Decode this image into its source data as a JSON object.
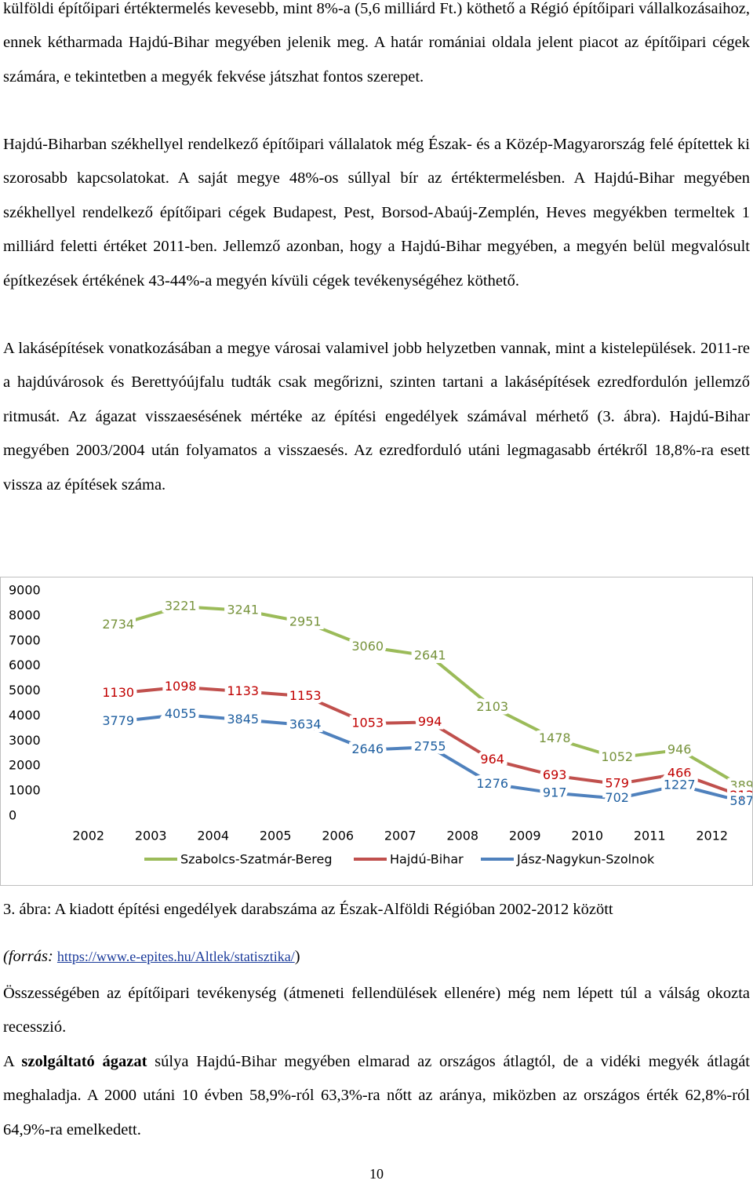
{
  "paragraphs": [
    "külföldi építőipari értéktermelés kevesebb, mint 8%-a (5,6 milliárd Ft.) köthető a Régió építőipari vállalkozásaihoz, ennek kétharmada Hajdú-Bihar megyében jelenik meg. A határ romániai oldala jelent piacot az építőipari cégek számára, e tekintetben a megyék fekvése játszhat fontos szerepet.",
    "Hajdú-Biharban székhellyel rendelkező építőipari vállalatok még Észak- és a Közép-Magyarország felé építettek ki szorosabb kapcsolatokat. A saját megye 48%-os súllyal bír az értéktermelésben. A Hajdú-Bihar megyében székhellyel rendelkező építőipari cégek Budapest, Pest, Borsod-Abaúj-Zemplén, Heves megyékben termeltek 1 milliárd feletti értéket 2011-ben. Jellemző azonban, hogy a Hajdú-Bihar megyében, a megyén belül megvalósult építkezések értékének 43-44%-a megyén kívüli cégek tevékenységéhez köthető.",
    "A lakásépítések vonatkozásában a megye városai valamivel jobb helyzetben vannak, mint a kistelepülések. 2011-re a hajdúvárosok és Berettyóújfalu tudták csak megőrizni, szinten tartani a lakásépítések ezredfordulón jellemző ritmusát. Az ágazat visszaesésének mértéke az építési engedélyek számával mérhető (3. ábra). Hajdú-Bihar megyében 2003/2004 után folyamatos a visszaesés. Az ezredforduló utáni legmagasabb értékről 18,8%-ra esett vissza az építések száma.",
    "Összességében az építőipari tevékenység (átmeneti fellendülések ellenére) még nem lépett túl a válság okozta recesszió.",
    {
      "before": "A ",
      "bold": "szolgáltató ágazat",
      "after": " súlya Hajdú-Bihar megyében elmarad az országos átlagtól, de a vidéki megyék átlagát meghaladja. A 2000 utáni 10 évben 58,9%-ról 63,3%-ra nőtt az aránya, miközben az országos érték 62,8%-ról 64,9%-ra emelkedett."
    }
  ],
  "chart_data": {
    "type": "line",
    "stacked": true,
    "categories": [
      "2002",
      "2003",
      "2004",
      "2005",
      "2006",
      "2007",
      "2008",
      "2009",
      "2010",
      "2011",
      "2012"
    ],
    "series": [
      {
        "name": "Szabolcs-Szatmár-Bereg",
        "color": "#9bbb59",
        "label_color": "#77933c",
        "values": [
          2734,
          3221,
          3241,
          2951,
          3060,
          2641,
          2103,
          1478,
          1052,
          946,
          389
        ]
      },
      {
        "name": "Hajdú-Bihar",
        "color": "#c0504d",
        "label_color": "#c00000",
        "values": [
          1130,
          1098,
          1133,
          1153,
          1053,
          994,
          964,
          693,
          579,
          466,
          213
        ]
      },
      {
        "name": "Jász-Nagykun-Szolnok",
        "color": "#4f81bd",
        "label_color": "#1f5fa0",
        "values": [
          3779,
          4055,
          3845,
          3634,
          2646,
          2755,
          1276,
          917,
          702,
          1227,
          587
        ]
      }
    ],
    "ylim": [
      0,
      9000
    ],
    "yticks": [
      0,
      1000,
      2000,
      3000,
      4000,
      5000,
      6000,
      7000,
      8000,
      9000
    ],
    "grid": false
  },
  "figure": {
    "caption": "3. ábra: A kiadott építési engedélyek darabszáma az Észak-Alföldi Régióban 2002-2012 között",
    "source_prefix": "(forrás: ",
    "source_link": "https://www.e-epites.hu/Altlek/statisztika/",
    "source_suffix": ")"
  },
  "page_number": "10"
}
